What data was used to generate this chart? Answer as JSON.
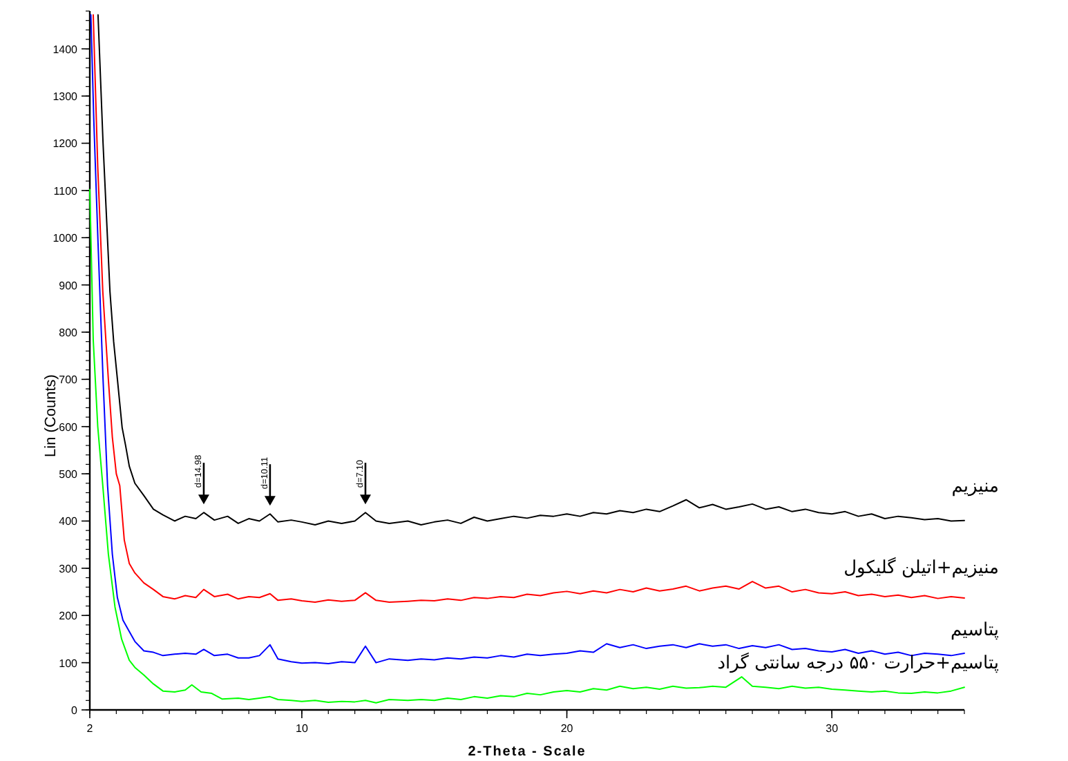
{
  "chart_data": {
    "type": "line",
    "xlabel": "2-Theta - Scale",
    "ylabel": "Lin (Counts)",
    "xlim": [
      2,
      35
    ],
    "xticks": [
      2,
      10,
      20,
      30
    ],
    "ylim": [
      0,
      1480
    ],
    "yticks": [
      0,
      100,
      200,
      300,
      400,
      500,
      600,
      700,
      800,
      900,
      1000,
      1100,
      1200,
      1300,
      1400
    ],
    "line_style": "solid",
    "annotations": [
      {
        "text": "d=14.98",
        "x": 6.3,
        "y": 418
      },
      {
        "text": "d=10.11",
        "x": 8.8,
        "y": 415
      },
      {
        "text": "d=7.10",
        "x": 12.4,
        "y": 418
      }
    ],
    "series": [
      {
        "name": "منیزیم",
        "color": "#000000",
        "x": [
          2.31,
          2.5,
          2.76,
          2.9,
          3.04,
          3.22,
          3.35,
          3.49,
          3.7,
          4.04,
          4.4,
          4.76,
          5.2,
          5.6,
          6.0,
          6.3,
          6.7,
          7.2,
          7.6,
          8.0,
          8.4,
          8.8,
          9.1,
          9.6,
          10,
          10.5,
          11,
          11.5,
          12,
          12.4,
          12.8,
          13.3,
          14,
          14.5,
          15,
          15.5,
          16,
          16.5,
          17,
          17.5,
          18,
          18.5,
          19,
          19.5,
          20,
          20.5,
          21,
          21.5,
          22,
          22.5,
          23,
          23.5,
          24,
          24.5,
          25,
          25.5,
          26,
          26.5,
          27,
          27.5,
          28,
          28.5,
          29,
          29.5,
          30,
          30.5,
          31,
          31.5,
          32,
          32.5,
          33,
          33.5,
          34,
          34.5,
          35
        ],
        "values": [
          1472,
          1200,
          886,
          780,
          701,
          598,
          560,
          516,
          480,
          454,
          425,
          413,
          400,
          410,
          405,
          418,
          402,
          410,
          395,
          405,
          400,
          415,
          398,
          402,
          398,
          392,
          400,
          395,
          400,
          418,
          400,
          395,
          400,
          392,
          398,
          402,
          395,
          408,
          400,
          405,
          410,
          406,
          412,
          410,
          415,
          410,
          418,
          415,
          422,
          418,
          425,
          420,
          432,
          445,
          428,
          435,
          425,
          430,
          436,
          425,
          430,
          420,
          425,
          418,
          415,
          420,
          410,
          415,
          405,
          410,
          407,
          403,
          405,
          400,
          401
        ]
      },
      {
        "name": "منیزیم+اتیلن گلیکول",
        "color": "#ff0000",
        "x": [
          2.13,
          2.3,
          2.49,
          2.7,
          2.85,
          3.0,
          3.13,
          3.3,
          3.49,
          3.7,
          4.04,
          4.4,
          4.76,
          5.2,
          5.6,
          6.0,
          6.3,
          6.7,
          7.2,
          7.6,
          8.0,
          8.4,
          8.8,
          9.1,
          9.6,
          10,
          10.5,
          11,
          11.5,
          12,
          12.4,
          12.8,
          13.3,
          14,
          14.5,
          15,
          15.5,
          16,
          16.5,
          17,
          17.5,
          18,
          18.5,
          19,
          19.5,
          20,
          20.5,
          21,
          21.5,
          22,
          22.5,
          23,
          23.5,
          24,
          24.5,
          25,
          25.5,
          26,
          26.5,
          27,
          27.5,
          28,
          28.5,
          29,
          29.5,
          30,
          30.5,
          31,
          31.5,
          32,
          32.5,
          33,
          33.5,
          34,
          34.5,
          35
        ],
        "values": [
          1472,
          1150,
          886,
          700,
          578,
          500,
          475,
          360,
          310,
          290,
          269,
          255,
          240,
          235,
          242,
          238,
          255,
          240,
          245,
          235,
          240,
          238,
          246,
          232,
          235,
          231,
          228,
          233,
          230,
          232,
          248,
          232,
          228,
          230,
          232,
          231,
          235,
          232,
          238,
          236,
          240,
          238,
          245,
          242,
          248,
          251,
          246,
          252,
          248,
          255,
          250,
          258,
          252,
          256,
          262,
          252,
          258,
          262,
          256,
          272,
          258,
          262,
          250,
          255,
          248,
          246,
          250,
          242,
          245,
          240,
          243,
          238,
          242,
          236,
          240,
          237
        ]
      },
      {
        "name": "پتاسیم",
        "color": "#0000ff",
        "x": [
          2.04,
          2.15,
          2.31,
          2.5,
          2.67,
          2.85,
          3.04,
          3.25,
          3.49,
          3.7,
          4.04,
          4.4,
          4.76,
          5.2,
          5.6,
          6.0,
          6.3,
          6.7,
          7.2,
          7.6,
          8.0,
          8.4,
          8.8,
          9.1,
          9.6,
          10,
          10.5,
          11,
          11.5,
          12,
          12.4,
          12.8,
          13.3,
          14,
          14.5,
          15,
          15.5,
          16,
          16.5,
          17,
          17.5,
          18,
          18.5,
          19,
          19.5,
          20,
          20.5,
          21,
          21.5,
          22,
          22.5,
          23,
          23.5,
          24,
          24.5,
          25,
          25.5,
          26,
          26.5,
          27,
          27.5,
          28,
          28.5,
          29,
          29.5,
          30,
          30.5,
          31,
          31.5,
          32,
          32.5,
          33,
          33.5,
          34,
          34.5,
          35
        ],
        "values": [
          1472,
          1250,
          989,
          700,
          475,
          330,
          238,
          190,
          166,
          145,
          125,
          122,
          115,
          118,
          120,
          118,
          128,
          115,
          118,
          110,
          110,
          115,
          138,
          108,
          102,
          99,
          100,
          98,
          102,
          100,
          135,
          100,
          108,
          105,
          108,
          106,
          110,
          108,
          112,
          110,
          115,
          112,
          118,
          115,
          118,
          120,
          125,
          122,
          140,
          132,
          138,
          130,
          135,
          138,
          132,
          140,
          135,
          138,
          130,
          136,
          132,
          138,
          128,
          130,
          125,
          123,
          128,
          120,
          125,
          118,
          122,
          115,
          120,
          118,
          115,
          120
        ]
      },
      {
        "name": "پتاسیم+حرارت ۵۵۰ درجه سانتی گراد",
        "color": "#00ff00",
        "x": [
          2.0,
          2.13,
          2.3,
          2.49,
          2.7,
          2.95,
          3.2,
          3.49,
          3.7,
          4.04,
          4.4,
          4.76,
          5.2,
          5.6,
          5.85,
          6.2,
          6.6,
          7.0,
          7.6,
          8.0,
          8.4,
          8.8,
          9.1,
          9.6,
          10,
          10.5,
          11,
          11.5,
          12,
          12.4,
          12.8,
          13.3,
          14,
          14.5,
          15,
          15.5,
          16,
          16.5,
          17,
          17.5,
          18,
          18.5,
          19,
          19.5,
          20,
          20.5,
          21,
          21.5,
          22,
          22.5,
          23,
          23.5,
          24,
          24.5,
          25,
          25.5,
          26,
          26.6,
          27,
          27.5,
          28,
          28.5,
          29,
          29.5,
          30,
          30.5,
          31,
          31.5,
          32,
          32.5,
          33,
          33.5,
          34,
          34.5,
          35
        ],
        "values": [
          1102,
          783,
          600,
          475,
          330,
          218,
          150,
          105,
          90,
          74,
          55,
          40,
          38,
          42,
          53,
          38,
          35,
          23,
          25,
          22,
          25,
          28,
          22,
          20,
          18,
          20,
          16,
          18,
          17,
          20,
          15,
          22,
          20,
          22,
          20,
          25,
          22,
          28,
          25,
          30,
          28,
          35,
          32,
          38,
          41,
          38,
          45,
          42,
          50,
          45,
          48,
          44,
          50,
          46,
          47,
          50,
          48,
          70,
          50,
          48,
          45,
          50,
          46,
          48,
          44,
          42,
          40,
          38,
          40,
          36,
          35,
          38,
          36,
          40,
          48
        ]
      }
    ]
  }
}
